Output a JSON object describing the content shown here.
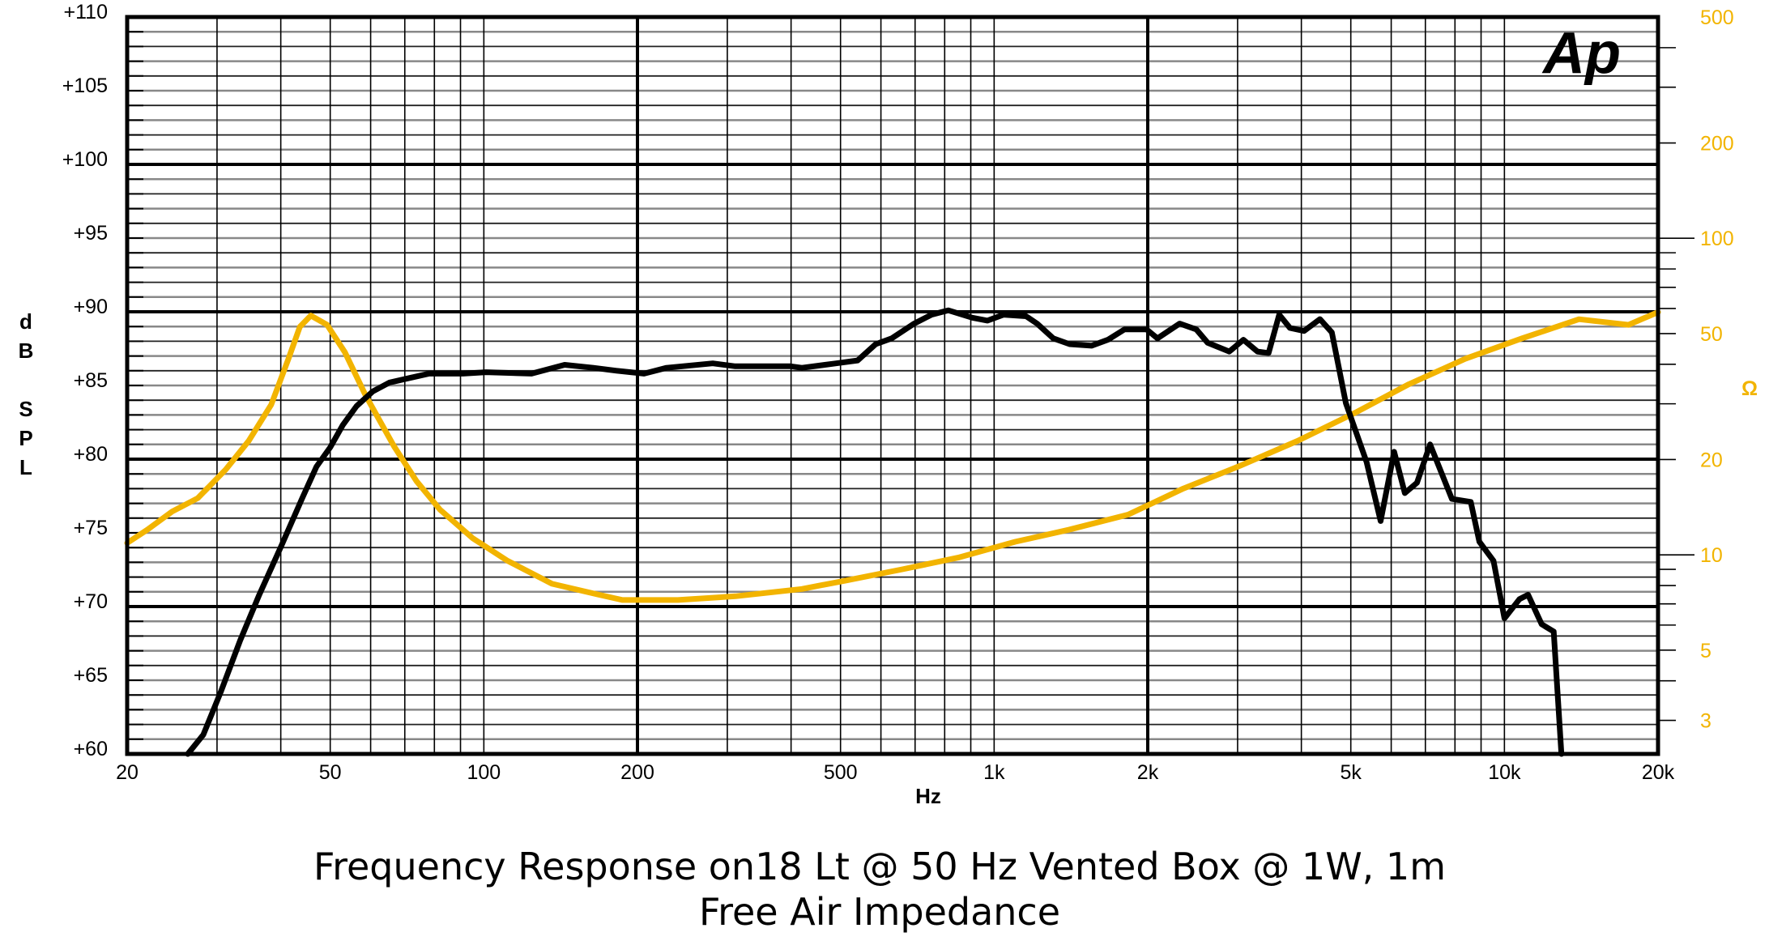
{
  "chart_data": {
    "type": "line",
    "title": "Frequency Response on18 Lt @ 50 Hz Vented Box @ 1W, 1m",
    "subtitle": "Free Air Impedance",
    "logo": "Ap",
    "xlabel": "Hz",
    "ylabel": "dB SPL",
    "y2label": "Ω",
    "xscale": "log",
    "xlim": [
      20,
      20000
    ],
    "ylim": [
      60,
      110
    ],
    "y2scale": "log",
    "y2lim": [
      2.35,
      500
    ],
    "grid": true,
    "x_ticks": [
      {
        "value": 20,
        "label": "20"
      },
      {
        "value": 50,
        "label": "50"
      },
      {
        "value": 100,
        "label": "100"
      },
      {
        "value": 200,
        "label": "200"
      },
      {
        "value": 500,
        "label": "500"
      },
      {
        "value": 1000,
        "label": "1k"
      },
      {
        "value": 2000,
        "label": "2k"
      },
      {
        "value": 5000,
        "label": "5k"
      },
      {
        "value": 10000,
        "label": "10k"
      },
      {
        "value": 20000,
        "label": "20k"
      }
    ],
    "y_ticks": [
      {
        "value": 110,
        "label": "+110"
      },
      {
        "value": 105,
        "label": "+105"
      },
      {
        "value": 100,
        "label": "+100"
      },
      {
        "value": 95,
        "label": "+95"
      },
      {
        "value": 90,
        "label": "+90"
      },
      {
        "value": 85,
        "label": "+85"
      },
      {
        "value": 80,
        "label": "+80"
      },
      {
        "value": 75,
        "label": "+75"
      },
      {
        "value": 70,
        "label": "+70"
      },
      {
        "value": 65,
        "label": "+65"
      },
      {
        "value": 60,
        "label": "+60"
      }
    ],
    "y2_ticks": [
      {
        "value": 500,
        "label": "500"
      },
      {
        "value": 200,
        "label": "200"
      },
      {
        "value": 100,
        "label": "100"
      },
      {
        "value": 50,
        "label": "50"
      },
      {
        "value": 20,
        "label": "20"
      },
      {
        "value": 10,
        "label": "10"
      },
      {
        "value": 5,
        "label": "5"
      },
      {
        "value": 3,
        "label": "3"
      }
    ],
    "series": [
      {
        "axis": "left",
        "color": "#000000",
        "x": [
          26.3,
          28.2,
          30.5,
          33.3,
          36.3,
          40.2,
          44,
          47,
          50,
          52.9,
          56.3,
          60.6,
          65.3,
          78,
          91,
          101,
          124,
          144,
          164,
          182,
          206,
          228,
          281,
          311,
          399,
          420,
          490,
          540,
          586,
          630,
          697,
          754,
          813,
          906,
          970,
          1044,
          1155,
          1214,
          1306,
          1406,
          1552,
          1670,
          1800,
          1990,
          2090,
          2310,
          2490,
          2620,
          2890,
          3080,
          3280,
          3450,
          3620,
          3800,
          4050,
          4350,
          4590,
          4890,
          5370,
          5720,
          6080,
          6380,
          6740,
          7150,
          7890,
          8590,
          8930,
          9520,
          10000,
          10700,
          11130,
          11830,
          12490,
          12930
        ],
        "y": [
          60,
          61.3,
          64.2,
          67.7,
          70.8,
          74.2,
          77.3,
          79.5,
          80.8,
          82.3,
          83.6,
          84.6,
          85.2,
          85.8,
          85.8,
          85.9,
          85.8,
          86.4,
          86.2,
          86,
          85.8,
          86.2,
          86.5,
          86.3,
          86.3,
          86.2,
          86.5,
          86.7,
          87.8,
          88.2,
          89.2,
          89.8,
          90.1,
          89.6,
          89.4,
          89.8,
          89.7,
          89.2,
          88.2,
          87.8,
          87.7,
          88.1,
          88.8,
          88.8,
          88.2,
          89.2,
          88.8,
          87.9,
          87.3,
          88.1,
          87.3,
          87.2,
          89.8,
          88.9,
          88.7,
          89.5,
          88.6,
          83.8,
          79.8,
          75.8,
          80.5,
          77.7,
          78.4,
          81,
          77.3,
          77.1,
          74.4,
          73.1,
          69.2,
          70.5,
          70.8,
          68.8,
          68.3,
          60
        ]
      },
      {
        "axis": "right",
        "color": "#f2b400",
        "x": [
          20,
          21.9,
          24.5,
          27.5,
          31.2,
          34.6,
          38.3,
          41.4,
          43.6,
          45.8,
          49.3,
          53.4,
          58.7,
          66.7,
          73.8,
          82,
          95,
          111,
          136,
          167,
          187,
          240,
          311,
          420,
          513,
          661,
          850,
          1100,
          1400,
          1830,
          2350,
          3030,
          3930,
          5100,
          6500,
          8380,
          10800,
          14000,
          17500,
          20000
        ],
        "y": [
          10.9,
          12,
          13.7,
          15.1,
          18.6,
          22.9,
          29.8,
          41.6,
          52.5,
          57,
          53.3,
          43.7,
          31.8,
          22,
          17.1,
          13.9,
          11.3,
          9.6,
          8.1,
          7.5,
          7.2,
          7.2,
          7.4,
          7.8,
          8.3,
          9,
          9.8,
          11,
          12,
          13.4,
          16.2,
          19.1,
          22.9,
          28.1,
          34.6,
          41.6,
          48.2,
          55.5,
          53.3,
          58.4
        ]
      }
    ]
  }
}
